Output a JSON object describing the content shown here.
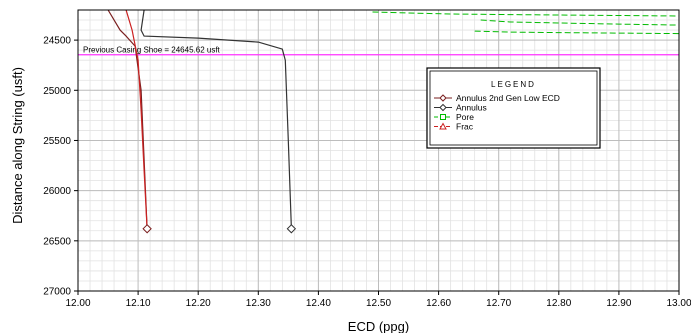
{
  "chart_data": {
    "type": "line",
    "xlabel": "ECD (ppg)",
    "ylabel": "Distance along String (usft)",
    "xlim": [
      12.0,
      13.0
    ],
    "ylim": [
      24200,
      27000
    ],
    "y_inverted": true,
    "xticks": [
      "12.00",
      "12.10",
      "12.20",
      "12.30",
      "12.40",
      "12.50",
      "12.60",
      "12.70",
      "12.80",
      "12.90",
      "13.00"
    ],
    "yticks": [
      "24500",
      "25000",
      "25500",
      "26000",
      "26500",
      "27000"
    ],
    "grid": true,
    "legend": {
      "title": "LEGEND",
      "placement": "upper-right-center",
      "entries": [
        {
          "name": "Annulus 2nd Gen Low ECD",
          "color": "#7a1f1f",
          "marker": "diamond"
        },
        {
          "name": "Annulus",
          "color": "#333333",
          "marker": "diamond"
        },
        {
          "name": "Pore",
          "color": "#00bb00",
          "marker": "square"
        },
        {
          "name": "Frac",
          "color": "#cc2222",
          "marker": "triangle"
        }
      ]
    },
    "annotation": {
      "text": "Previous Casing Shoe = 24645.62 usft",
      "y": 24645.62,
      "color": "#ff33ff"
    },
    "series": [
      {
        "name": "Annulus 2nd Gen Low ECD",
        "color": "#7a1f1f",
        "x": [
          12.05,
          12.07,
          12.08,
          12.095,
          12.105,
          12.115
        ],
        "y": [
          24200,
          24400,
          24460,
          24560,
          25000,
          26380
        ]
      },
      {
        "name": "Annulus",
        "color": "#333333",
        "x": [
          12.11,
          12.105,
          12.11,
          12.2,
          12.3,
          12.34,
          12.345,
          12.35,
          12.355
        ],
        "y": [
          24200,
          24400,
          24460,
          24480,
          24520,
          24590,
          24700,
          25500,
          26380
        ]
      },
      {
        "name": "Frac",
        "color": "#cc2222",
        "x": [
          12.08,
          12.09,
          12.1,
          12.105,
          12.11,
          12.115
        ],
        "y": [
          24200,
          24400,
          24700,
          25200,
          25800,
          26380
        ]
      },
      {
        "name": "Pore",
        "color": "#00bb00",
        "x": [
          12.49,
          12.55,
          12.62,
          12.7,
          12.8,
          12.9,
          13.0
        ],
        "y": [
          24220,
          24230,
          24240,
          24245,
          24250,
          24255,
          24260
        ]
      },
      {
        "name": "Pore",
        "color": "#00bb00",
        "x": [
          12.67,
          12.72,
          12.8,
          12.9,
          13.0
        ],
        "y": [
          24300,
          24320,
          24330,
          24340,
          24350
        ]
      },
      {
        "name": "Pore",
        "color": "#00bb00",
        "x": [
          12.66,
          12.72,
          12.8,
          12.9,
          13.0
        ],
        "y": [
          24410,
          24420,
          24425,
          24430,
          24435
        ]
      }
    ],
    "end_markers": [
      {
        "series": "Annulus 2nd Gen Low ECD",
        "x": 12.115,
        "y": 26380
      },
      {
        "series": "Annulus",
        "x": 12.355,
        "y": 26380
      }
    ]
  }
}
